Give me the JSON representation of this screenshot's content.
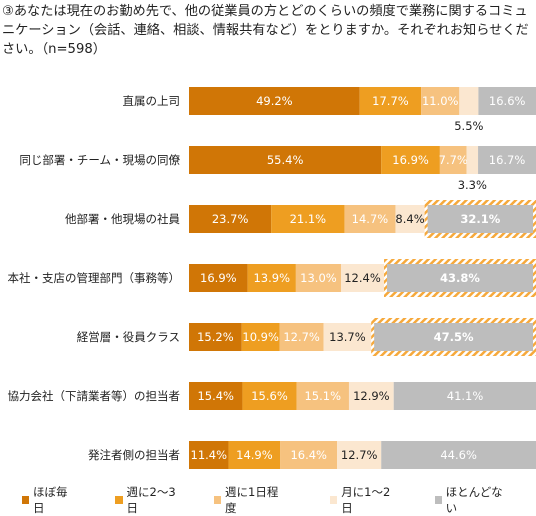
{
  "title": "③あなたは現在のお勤め先で、他の従業員の方とどのくらいの頻度で業務に関するコミュニケーション（会話、連絡、相談、情報共有など）をとりますか。それぞれお知らせください。（n=598）",
  "chart_data": {
    "type": "bar",
    "orientation": "horizontal",
    "stacked": "percent",
    "n": 598,
    "categories": [
      "直属の上司",
      "同じ部署・チーム・現場の同僚",
      "他部署・他現場の社員",
      "本社・支店の管理部門（事務等）",
      "経営層・役員クラス",
      "協力会社（下請業者等）の担当者",
      "発注者側の担当者"
    ],
    "series": [
      {
        "name": "ほぼ毎日",
        "color": "#d07606",
        "values": [
          49.2,
          55.4,
          23.7,
          16.9,
          15.2,
          15.4,
          11.4
        ],
        "labels": [
          "49.2%",
          "55.4%",
          "23.7%",
          "16.9%",
          "15.2%",
          "15.4%",
          "11.4%"
        ]
      },
      {
        "name": "週に2～3日",
        "color": "#ee9e21",
        "values": [
          17.7,
          16.9,
          21.1,
          13.9,
          10.9,
          15.6,
          14.9
        ],
        "labels": [
          "17.7%",
          "16.9%",
          "21.1%",
          "13.9%",
          "10.9%",
          "15.6%",
          "14.9%"
        ]
      },
      {
        "name": "週に1日程度",
        "color": "#f6c27f",
        "values": [
          11.0,
          7.7,
          14.7,
          13.0,
          12.7,
          15.1,
          16.4
        ],
        "labels": [
          "11.0%",
          "7.7%",
          "14.7%",
          "13.0%",
          "12.7%",
          "15.1%",
          "16.4%"
        ]
      },
      {
        "name": "月に1～2日",
        "color": "#fbe7d0",
        "values": [
          5.5,
          3.3,
          8.4,
          12.4,
          13.7,
          12.9,
          12.7
        ],
        "labels": [
          "5.5%",
          "3.3%",
          "8.4%",
          "12.4%",
          "13.7%",
          "12.9%",
          "12.7%"
        ]
      },
      {
        "name": "ほとんどない",
        "color": "#bdbdbd",
        "values": [
          16.6,
          16.7,
          32.1,
          43.8,
          47.5,
          41.1,
          44.6
        ],
        "labels": [
          "16.6%",
          "16.7%",
          "32.1%",
          "43.8%",
          "47.5%",
          "41.1%",
          "44.6%"
        ]
      }
    ],
    "highlighted": [
      [
        false,
        false,
        false,
        false,
        false
      ],
      [
        false,
        false,
        false,
        false,
        false
      ],
      [
        false,
        false,
        false,
        false,
        true
      ],
      [
        false,
        false,
        false,
        false,
        true
      ],
      [
        false,
        false,
        false,
        false,
        true
      ],
      [
        false,
        false,
        false,
        false,
        false
      ],
      [
        false,
        false,
        false,
        false,
        false
      ]
    ],
    "label_outside": [
      [
        false,
        false,
        false,
        true,
        false
      ],
      [
        false,
        false,
        false,
        true,
        false
      ],
      [
        false,
        false,
        false,
        false,
        false
      ],
      [
        false,
        false,
        false,
        false,
        false
      ],
      [
        false,
        false,
        false,
        false,
        false
      ],
      [
        false,
        false,
        false,
        false,
        false
      ],
      [
        false,
        false,
        false,
        false,
        false
      ]
    ],
    "label_color": [
      "#ffffff",
      "#ffffff",
      "#ffffff",
      "#222222",
      "#ffffff"
    ],
    "highlight_stripe_color": "#f6a93c",
    "xlim": [
      0,
      100
    ],
    "legend_position": "bottom"
  }
}
